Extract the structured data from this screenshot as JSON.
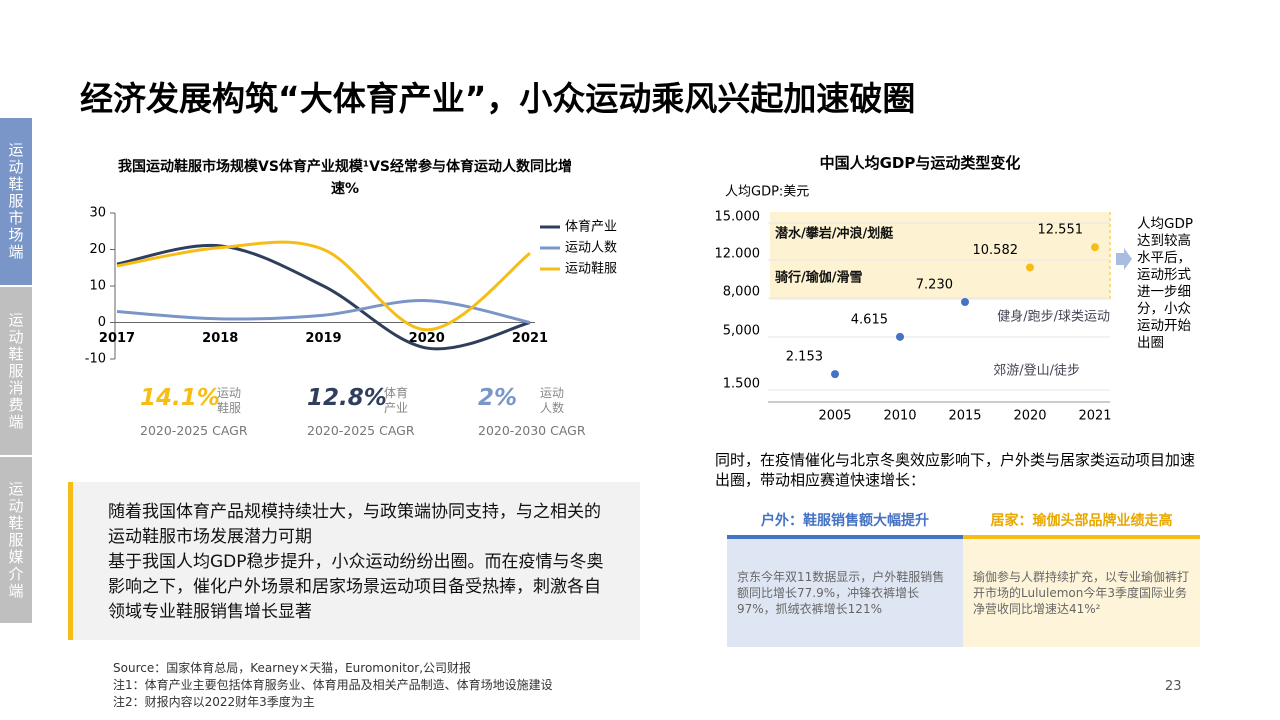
{
  "title": "经济发展构筑“大体育产业”，小众运动乘风兴起加速破圈",
  "sidebar": {
    "tabs": [
      "运动鞋服市场端",
      "运动鞋服消费端",
      "运动鞋服媒介端"
    ]
  },
  "chart_data": [
    {
      "type": "line",
      "title": "我国运动鞋服市场规模VS体育产业规模¹VS经常参与体育运动人数同比增速%",
      "categories": [
        "2017",
        "2018",
        "2019",
        "2020",
        "2021"
      ],
      "series": [
        {
          "name": "体育产业",
          "color": "#2f3e5c",
          "values": [
            16,
            21,
            10,
            -7,
            0
          ]
        },
        {
          "name": "运动人数",
          "color": "#7a96c8",
          "values": [
            3,
            1,
            2,
            6,
            0
          ]
        },
        {
          "name": "运动鞋服",
          "color": "#f6bd16",
          "values": [
            15.5,
            20.5,
            20,
            -2,
            19
          ]
        }
      ],
      "ylim": [
        -10,
        30
      ],
      "yticks": [
        -10,
        0,
        10,
        20,
        30
      ],
      "legend": "right"
    },
    {
      "type": "scatter",
      "title": "中国人均GDP与运动类型变化",
      "y_label": "人均GDP:美元",
      "categories": [
        "2005",
        "2010",
        "2015",
        "2020",
        "2021"
      ],
      "series": [
        {
          "color": "#4472c4",
          "values": [
            2153,
            4615,
            7230,
            null,
            null
          ],
          "value_labels": [
            "2.153",
            "4.615",
            "7.230",
            null,
            null
          ]
        },
        {
          "color": "#f6bd16",
          "values": [
            null,
            null,
            null,
            10582,
            12551
          ],
          "value_labels": [
            null,
            null,
            null,
            "10.582",
            "12.551"
          ]
        }
      ],
      "ylim": [
        1500,
        15000
      ],
      "yticks": [
        {
          "value": 1500,
          "label": "1.500"
        },
        {
          "value": 5000,
          "label": "5,000"
        },
        {
          "value": 8000,
          "label": "8,000"
        },
        {
          "value": 12000,
          "label": "12.000"
        },
        {
          "value": 15000,
          "label": "15.000"
        }
      ],
      "annotations": [
        "潜水/攀岩/冲浪/划艇",
        "骑行/瑜伽/滑雪",
        "健身/跑步/球类运动",
        "郊游/登山/徒步"
      ],
      "side_note": "人均GDP达到较高水平后，运动形式进一步细分，小众运动开始出圈"
    }
  ],
  "stats": [
    {
      "value": "14.1%",
      "label": "运动鞋服",
      "caption": "2020-2025 CAGR"
    },
    {
      "value": "12.8%",
      "label": "体育产业",
      "caption": "2020-2025 CAGR"
    },
    {
      "value": "2%",
      "label": "运动人数",
      "caption": "2020-2030 CAGR"
    }
  ],
  "summary": [
    "随着我国体育产品规模持续壮大，与政策端协同支持，与之相关的运动鞋服市场发展潜力可期",
    "基于我国人均GDP稳步提升，小众运动纷纷出圈。而在疫情与冬奥影响之下，催化户外场景和居家场景运动项目备受热捧，刺激各自领域专业鞋服销售增长显著"
  ],
  "intro": "同时，在疫情催化与北京冬奥效应影响下，户外类与居家类运动项目加速出圈，带动相应赛道快速增长：",
  "cards": [
    {
      "header": "户外：鞋服销售额大幅提升",
      "body": "京东今年双11数据显示，户外鞋服销售额同比增长77.9%，冲锋衣裤增长97%，抓绒衣裤增长121%"
    },
    {
      "header": "居家：瑜伽头部品牌业绩走高",
      "body": "瑜伽参与人群持续扩充，以专业瑜伽裤打开市场的Lululemon今年3季度国际业务净营收同比增速达41%²"
    }
  ],
  "source": [
    "Source：国家体育总局，Kearney×天猫，Euromonitor,公司财报",
    "注1：体育产业主要包括体育服务业、体育用品及相关产品制造、体育场地设施建设",
    "注2：财报内容以2022财年3季度为主"
  ],
  "page_number": "23"
}
